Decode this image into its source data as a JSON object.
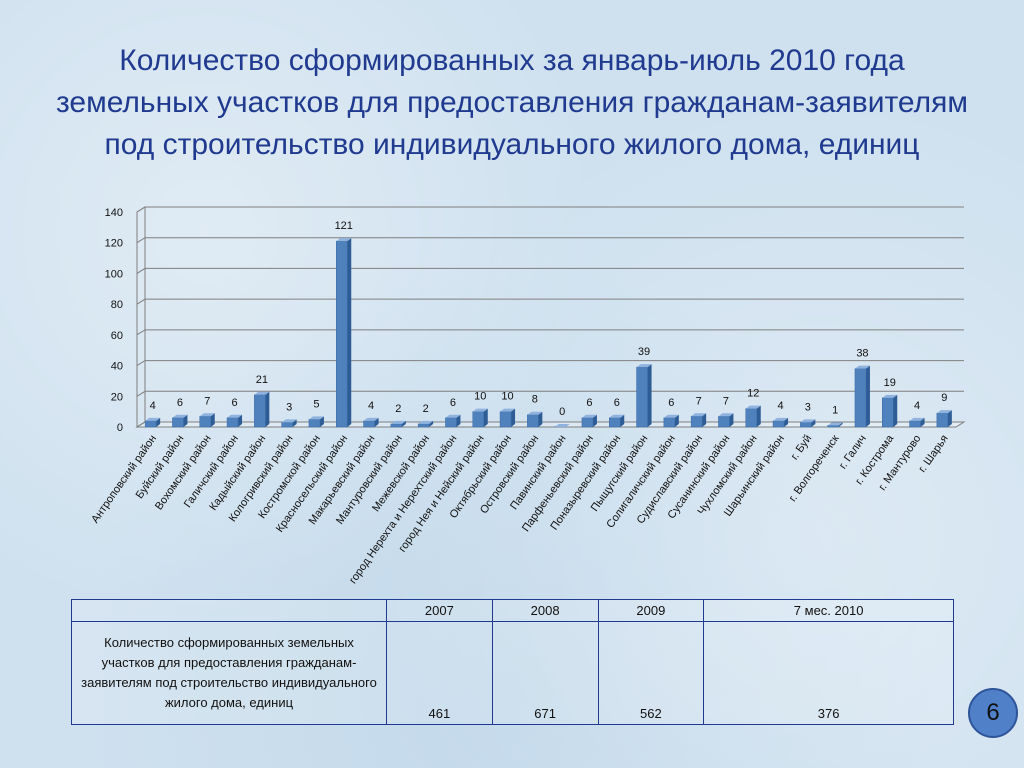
{
  "title_lines": [
    "Количество сформированных за январь-июль 2010 года",
    "земельных  участков для предоставления гражданам-заявителям",
    "под строительство индивидуального жилого дома, единиц"
  ],
  "chart_data": {
    "type": "bar",
    "categories": [
      "Антроповский район",
      "Буйский район",
      "Вохомский район",
      "Галичский район",
      "Кадыйский район",
      "Кологривский район",
      "Костромской район",
      "Красносельский район",
      "Макарьевский район",
      "Мантуровский район",
      "Межевской район",
      "город Нерехта и Нерехтский район",
      "город Нея и Нейский район",
      "Октябрьский район",
      "Островский район",
      "Павинский район",
      "Парфеньевский район",
      "Поназыревский район",
      "Пыщугский район",
      "Солигаличский район",
      "Судиславский район",
      "Сусанинский район",
      "Чухломский район",
      "Шарьинский район",
      "г. Буй",
      "г. Волгореченск",
      "г. Галич",
      "г. Кострома",
      "г. Мантурово",
      "г. Шарья"
    ],
    "values": [
      4,
      6,
      7,
      6,
      21,
      3,
      5,
      121,
      4,
      2,
      2,
      6,
      10,
      10,
      8,
      0,
      6,
      6,
      39,
      6,
      7,
      7,
      12,
      4,
      3,
      1,
      38,
      19,
      4,
      9
    ],
    "ylim": [
      0,
      140
    ],
    "yticks": [
      0,
      20,
      40,
      60,
      80,
      100,
      120,
      140
    ],
    "grid": true,
    "legend": "none",
    "bar_color": "#4f81bd"
  },
  "table": {
    "headers": [
      "2007",
      "2008",
      "2009",
      "7 мес. 2010"
    ],
    "row_label": "Количество сформированных земельных участков для предоставления гражданам-заявителям под строительство индивидуального жилого дома, единиц",
    "values": [
      "461",
      "671",
      "562",
      "376"
    ]
  },
  "page_number": "6"
}
